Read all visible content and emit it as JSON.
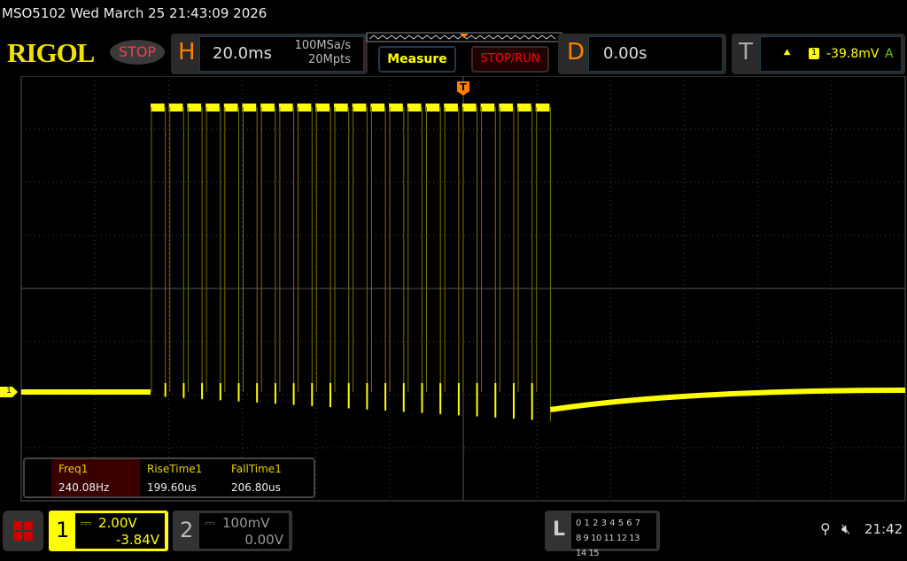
{
  "title": "MSO5102  Wed March 25 21:43:09 2026",
  "brand": "RIGOL",
  "run_state": "STOP",
  "horizontal": {
    "label": "H",
    "timebase": "20.0ms",
    "sample_rate": "100MSa/s",
    "memory_depth": "20Mpts"
  },
  "buttons": {
    "measure": "Measure",
    "stop_run": "STOP/RUN"
  },
  "delay": {
    "label": "D",
    "value": "0.00s"
  },
  "trigger": {
    "label": "T",
    "source": "1",
    "level": "-39.8mV",
    "mode": "A",
    "marker": "T"
  },
  "measurements": [
    {
      "label": "Freq1",
      "value": "240.08Hz"
    },
    {
      "label": "RiseTime1",
      "value": "199.60us"
    },
    {
      "label": "FallTime1",
      "value": "206.80us"
    }
  ],
  "channel1": {
    "num": "1",
    "scale": "2.00V",
    "offset": "-3.84V",
    "marker": "1"
  },
  "channel2": {
    "num": "2",
    "scale": "100mV",
    "offset": "0.00V"
  },
  "logic": {
    "label": "L",
    "row1": "0 1 2 3  4 5 6 7",
    "row2": "8 9 10 11 12 13 14 15"
  },
  "status": {
    "clock": "21:42",
    "icons": [
      "usb-icon",
      "speaker-muted-icon"
    ]
  },
  "colors": {
    "ch1": "#ffff00",
    "accent": "#ff8000",
    "stop": "#ff0000"
  },
  "waveform": {
    "pulse_count": 22
  }
}
